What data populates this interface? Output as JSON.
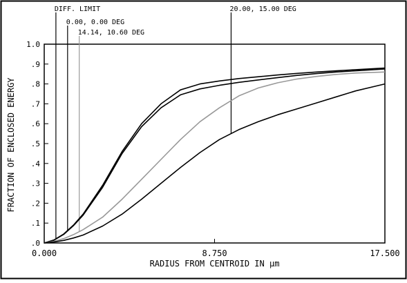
{
  "chart_data": {
    "type": "line",
    "title": "",
    "xlabel": "RADIUS FROM CENTROID IN µm",
    "ylabel": "FRACTION OF ENCLOSED ENERGY",
    "xlim": [
      0,
      17.5
    ],
    "ylim": [
      0,
      1.0
    ],
    "x_ticks": [
      {
        "value": 0,
        "label": "0.000"
      },
      {
        "value": 8.75,
        "label": "8.750"
      },
      {
        "value": 17.5,
        "label": "17.500"
      }
    ],
    "y_ticks": [
      {
        "value": 0.0,
        "label": ".0"
      },
      {
        "value": 0.1,
        "label": ".1"
      },
      {
        "value": 0.2,
        "label": ".2"
      },
      {
        "value": 0.3,
        "label": ".3"
      },
      {
        "value": 0.4,
        "label": ".4"
      },
      {
        "value": 0.5,
        "label": ".5"
      },
      {
        "value": 0.6,
        "label": ".6"
      },
      {
        "value": 0.7,
        "label": ".7"
      },
      {
        "value": 0.8,
        "label": ".8"
      },
      {
        "value": 0.9,
        "label": ".9"
      },
      {
        "value": 1.0,
        "label": "1.0"
      }
    ],
    "grid": false,
    "legend": "callout labels above plot",
    "x": [
      0,
      0.5,
      1.0,
      1.5,
      2.0,
      3.0,
      4.0,
      5.0,
      6.0,
      7.0,
      8.0,
      9.0,
      10.0,
      11.0,
      12.0,
      13.0,
      14.0,
      15.0,
      16.0,
      17.5
    ],
    "series": [
      {
        "name": "DIFF. LIMIT",
        "color": "#000000",
        "values": [
          0,
          0.015,
          0.045,
          0.09,
          0.145,
          0.29,
          0.46,
          0.6,
          0.7,
          0.77,
          0.8,
          0.815,
          0.827,
          0.836,
          0.845,
          0.853,
          0.86,
          0.866,
          0.872,
          0.88
        ]
      },
      {
        "name": "0.00, 0.00 DEG",
        "color": "#000000",
        "values": [
          0,
          0.014,
          0.043,
          0.087,
          0.14,
          0.28,
          0.45,
          0.585,
          0.68,
          0.745,
          0.775,
          0.793,
          0.808,
          0.82,
          0.832,
          0.843,
          0.852,
          0.86,
          0.866,
          0.875
        ]
      },
      {
        "name": "14.14, 10.60 DEG",
        "color": "#999999",
        "values": [
          0,
          0.008,
          0.022,
          0.042,
          0.067,
          0.13,
          0.22,
          0.32,
          0.42,
          0.52,
          0.61,
          0.68,
          0.74,
          0.78,
          0.806,
          0.825,
          0.838,
          0.848,
          0.855,
          0.86
        ]
      },
      {
        "name": "20.00, 15.00 DEG",
        "color": "#000000",
        "values": [
          0,
          0.005,
          0.013,
          0.025,
          0.04,
          0.085,
          0.145,
          0.22,
          0.3,
          0.38,
          0.455,
          0.52,
          0.57,
          0.61,
          0.645,
          0.675,
          0.705,
          0.735,
          0.765,
          0.8
        ]
      }
    ],
    "callouts": [
      {
        "series": "DIFF. LIMIT",
        "label": "DIFF. LIMIT",
        "x": 0.6
      },
      {
        "series": "0.00, 0.00 DEG",
        "label": "0.00, 0.00 DEG",
        "x": 1.2
      },
      {
        "series": "14.14, 10.60 DEG",
        "label": "14.14, 10.60 DEG",
        "x": 1.8
      },
      {
        "series": "20.00, 15.00 DEG",
        "label": "20.00, 15.00 DEG",
        "x": 9.6
      }
    ]
  }
}
